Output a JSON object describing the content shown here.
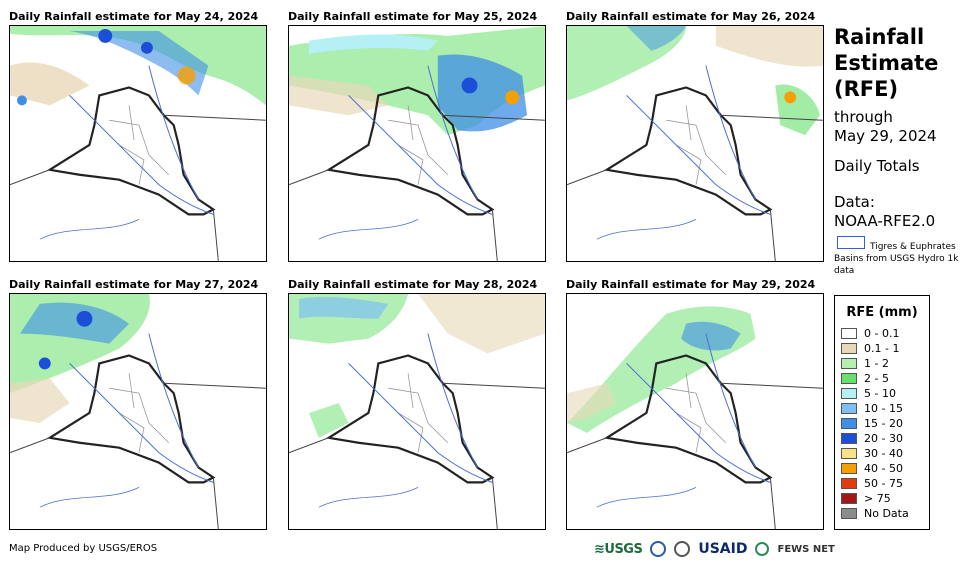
{
  "panels": [
    {
      "title": "Daily Rainfall estimate for May 24, 2024"
    },
    {
      "title": "Daily Rainfall estimate for May 25, 2024"
    },
    {
      "title": "Daily Rainfall estimate for May 26, 2024"
    },
    {
      "title": "Daily Rainfall estimate for May 27, 2024"
    },
    {
      "title": "Daily Rainfall estimate for May 28, 2024"
    },
    {
      "title": "Daily Rainfall estimate for May 29, 2024"
    }
  ],
  "sidebar": {
    "title_line1": "Rainfall",
    "title_line2": "Estimate",
    "title_line3": "(RFE)",
    "through": "through",
    "date": "May 29, 2024",
    "totals": "Daily Totals",
    "data_label": "Data:",
    "data_source": "NOAA-RFE2.0",
    "basin_note": "Tigres & Euphrates Basins from USGS Hydro 1k data"
  },
  "legend": {
    "title": "RFE (mm)",
    "items": [
      {
        "label": "0 - 0.1",
        "color": "#ffffff"
      },
      {
        "label": "0.1 - 1",
        "color": "#e8d8b8"
      },
      {
        "label": "1 - 2",
        "color": "#b6f0b0"
      },
      {
        "label": "2 - 5",
        "color": "#66e06a"
      },
      {
        "label": "5 - 10",
        "color": "#b4f0f4"
      },
      {
        "label": "10 - 15",
        "color": "#7ec0f2"
      },
      {
        "label": "15 - 20",
        "color": "#3f8fe6"
      },
      {
        "label": "20 - 30",
        "color": "#1c4fd8"
      },
      {
        "label": "30 - 40",
        "color": "#f7e28a"
      },
      {
        "label": "40 - 50",
        "color": "#f5a000"
      },
      {
        "label": "50 - 75",
        "color": "#e23b10"
      },
      {
        "label": "> 75",
        "color": "#a01818"
      },
      {
        "label": "No Data",
        "color": "#8c8c8c"
      }
    ]
  },
  "footer": {
    "credit": "Map Produced by USGS/EROS",
    "logo_usgs": "≋USGS",
    "logo_usaid": "USAID",
    "logo_fews": "FEWS NET"
  }
}
